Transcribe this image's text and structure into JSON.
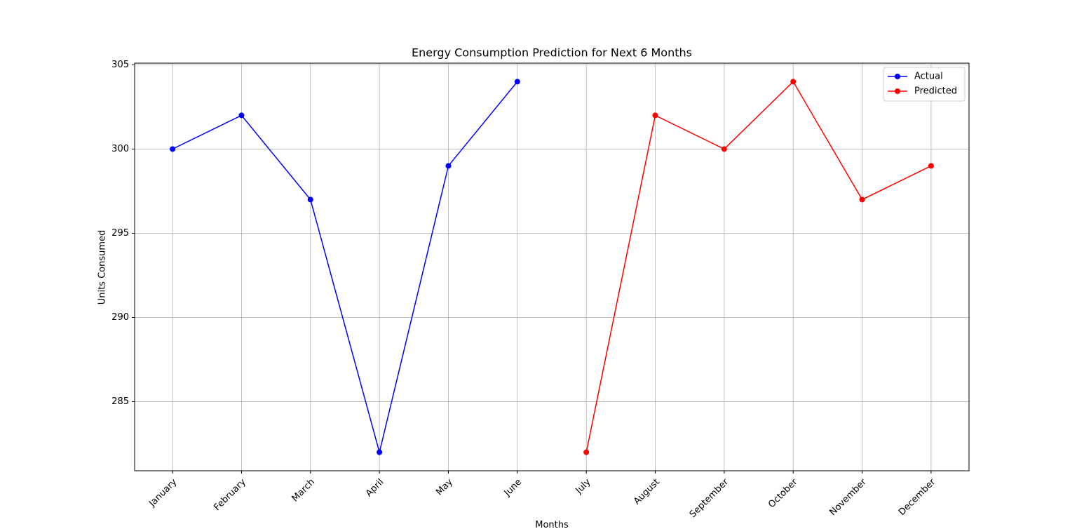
{
  "chart_data": {
    "type": "line",
    "title": "Energy Consumption Prediction for Next 6 Months",
    "x_label": "Months",
    "y_label": "Units Consumed",
    "categories": [
      "January",
      "February",
      "March",
      "April",
      "May",
      "June",
      "July",
      "August",
      "September",
      "October",
      "November",
      "December"
    ],
    "series": [
      {
        "name": "Actual",
        "color": "#0000ff",
        "values": [
          300,
          302,
          297,
          282,
          299,
          304,
          null,
          null,
          null,
          null,
          null,
          null
        ]
      },
      {
        "name": "Predicted",
        "color": "#ff0000",
        "values": [
          null,
          null,
          null,
          null,
          null,
          null,
          282,
          302,
          300,
          304,
          297,
          299
        ]
      }
    ],
    "ylim": [
      280.9,
      305.1
    ],
    "yticks": [
      285,
      290,
      295,
      300,
      305
    ],
    "grid": true,
    "legend": "upper right"
  }
}
